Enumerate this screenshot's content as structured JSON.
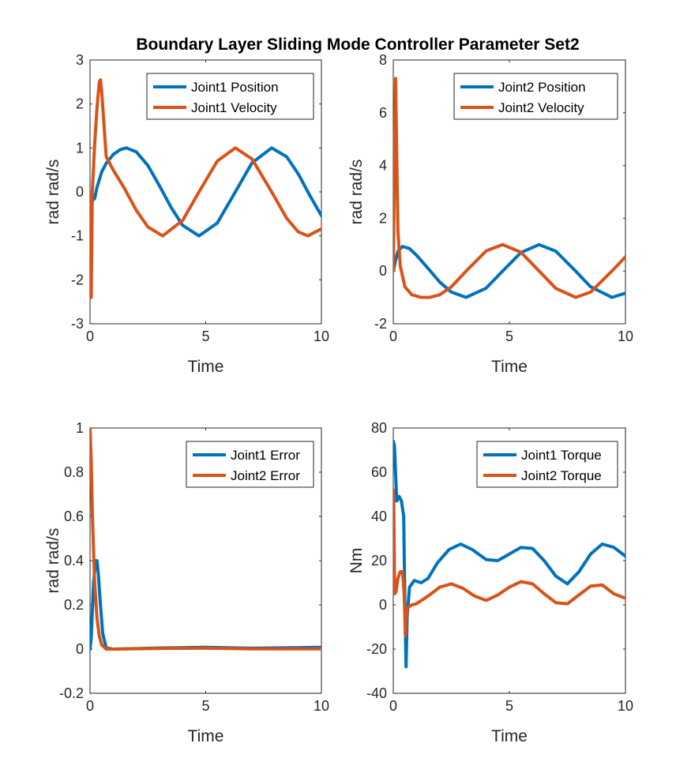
{
  "figure": {
    "title": "Boundary Layer Sliding Mode Controller Parameter Set2",
    "colors": {
      "blue": "#0072BD",
      "orange": "#D95319",
      "axis": "#262626"
    }
  },
  "chart_data": [
    {
      "type": "line",
      "xlabel": "Time",
      "ylabel": "rad rad/s",
      "xlim": [
        0,
        10
      ],
      "ylim": [
        -3,
        3
      ],
      "xticks": [
        0,
        5,
        10
      ],
      "yticks": [
        -3,
        -2,
        -1,
        0,
        1,
        2,
        3
      ],
      "legend_position": "top-right",
      "series": [
        {
          "name": "Joint1 Position",
          "color": "#0072BD",
          "x": [
            0,
            0.1,
            0.2,
            0.3,
            0.5,
            0.7,
            1.0,
            1.3,
            1.57,
            2.0,
            2.5,
            3.0,
            3.5,
            4.0,
            4.71,
            5.5,
            6.28,
            7.0,
            7.85,
            8.5,
            9.0,
            9.5,
            10.0
          ],
          "y": [
            0,
            -0.2,
            -0.15,
            0.1,
            0.45,
            0.65,
            0.85,
            0.96,
            1.0,
            0.91,
            0.6,
            0.14,
            -0.35,
            -0.76,
            -1.0,
            -0.71,
            0.0,
            0.66,
            1.0,
            0.8,
            0.41,
            -0.08,
            -0.54
          ]
        },
        {
          "name": "Joint1 Velocity",
          "color": "#D95319",
          "x": [
            0,
            0.05,
            0.1,
            0.2,
            0.3,
            0.4,
            0.45,
            0.5,
            0.7,
            1.0,
            1.5,
            2.0,
            2.5,
            3.14,
            4.0,
            4.71,
            5.5,
            6.28,
            7.0,
            7.85,
            8.5,
            9.0,
            9.42,
            10.0
          ],
          "y": [
            0,
            -2.4,
            0,
            1.1,
            1.9,
            2.5,
            2.55,
            2.3,
            0.8,
            0.5,
            0.07,
            -0.42,
            -0.8,
            -1.0,
            -0.65,
            0.0,
            0.7,
            1.0,
            0.75,
            0.0,
            -0.6,
            -0.91,
            -1.0,
            -0.84
          ]
        }
      ]
    },
    {
      "type": "line",
      "xlabel": "Time",
      "ylabel": "rad rad/s",
      "xlim": [
        0,
        10
      ],
      "ylim": [
        -2,
        8
      ],
      "xticks": [
        0,
        5,
        10
      ],
      "yticks": [
        -2,
        0,
        2,
        4,
        6,
        8
      ],
      "legend_position": "top-right",
      "series": [
        {
          "name": "Joint2 Position",
          "color": "#0072BD",
          "x": [
            0,
            0.1,
            0.2,
            0.4,
            0.7,
            1.0,
            1.5,
            2.0,
            2.5,
            3.14,
            4.0,
            4.71,
            5.5,
            6.28,
            7.0,
            7.85,
            8.5,
            9.42,
            10.0
          ],
          "y": [
            0,
            0.4,
            0.75,
            0.93,
            0.85,
            0.6,
            0.1,
            -0.42,
            -0.8,
            -1.0,
            -0.65,
            0.0,
            0.7,
            1.0,
            0.75,
            0.0,
            -0.6,
            -1.0,
            -0.84
          ]
        },
        {
          "name": "Joint2 Velocity",
          "color": "#D95319",
          "x": [
            0,
            0.05,
            0.1,
            0.2,
            0.3,
            0.5,
            0.8,
            1.2,
            1.57,
            2.0,
            2.5,
            3.14,
            4.0,
            4.71,
            5.5,
            6.28,
            7.0,
            7.85,
            8.5,
            9.42,
            10.0
          ],
          "y": [
            0,
            4.0,
            7.3,
            1.5,
            0.2,
            -0.6,
            -0.9,
            -1.0,
            -1.0,
            -0.9,
            -0.6,
            0.0,
            0.76,
            1.0,
            0.71,
            0.0,
            -0.66,
            -1.0,
            -0.8,
            0.0,
            0.54
          ]
        }
      ]
    },
    {
      "type": "line",
      "xlabel": "Time",
      "ylabel": "rad rad/s",
      "xlim": [
        0,
        10
      ],
      "ylim": [
        -0.2,
        1
      ],
      "xticks": [
        0,
        5,
        10
      ],
      "yticks": [
        -0.2,
        0,
        0.2,
        0.4,
        0.6,
        0.8,
        1
      ],
      "legend_position": "top-right",
      "series": [
        {
          "name": "Joint1 Error",
          "color": "#0072BD",
          "x": [
            0,
            0.05,
            0.15,
            0.25,
            0.3,
            0.35,
            0.45,
            0.55,
            0.7,
            1.0,
            3.0,
            5.0,
            7.0,
            10.0
          ],
          "y": [
            0,
            0.05,
            0.3,
            0.4,
            0.4,
            0.35,
            0.2,
            0.07,
            0.005,
            0.0,
            0.005,
            0.008,
            0.004,
            0.008
          ]
        },
        {
          "name": "Joint2 Error",
          "color": "#D95319",
          "x": [
            0,
            0.05,
            0.1,
            0.15,
            0.2,
            0.3,
            0.4,
            0.5,
            0.7,
            1.0,
            3.0,
            5.0,
            7.0,
            10.0
          ],
          "y": [
            1.0,
            0.85,
            0.62,
            0.45,
            0.3,
            0.14,
            0.06,
            0.02,
            0.0,
            0.0,
            0.003,
            0.004,
            0.001,
            0.001
          ]
        }
      ]
    },
    {
      "type": "line",
      "xlabel": "Time",
      "ylabel": "Nm",
      "xlim": [
        0,
        10
      ],
      "ylim": [
        -40,
        80
      ],
      "xticks": [
        0,
        5,
        10
      ],
      "yticks": [
        -40,
        -20,
        0,
        20,
        40,
        60,
        80
      ],
      "legend_position": "top-right",
      "series": [
        {
          "name": "Joint1 Torque",
          "color": "#0072BD",
          "x": [
            0,
            0.05,
            0.15,
            0.25,
            0.35,
            0.45,
            0.5,
            0.55,
            0.6,
            0.7,
            0.9,
            1.2,
            1.5,
            1.9,
            2.4,
            2.9,
            3.4,
            4.0,
            4.5,
            5.0,
            5.5,
            6.0,
            6.5,
            7.0,
            7.5,
            8.0,
            8.5,
            9.0,
            9.5,
            10.0
          ],
          "y": [
            74,
            72,
            47,
            49,
            47,
            40,
            0,
            -28,
            -5,
            8,
            11,
            10,
            12,
            19,
            25,
            27.5,
            25,
            20.5,
            20,
            23,
            26,
            25.5,
            20,
            13,
            9.5,
            15,
            23,
            27.5,
            26,
            22
          ]
        },
        {
          "name": "Joint2 Torque",
          "color": "#D95319",
          "x": [
            0,
            0.02,
            0.06,
            0.12,
            0.2,
            0.3,
            0.4,
            0.47,
            0.52,
            0.57,
            0.65,
            0.8,
            1.0,
            1.5,
            2.0,
            2.5,
            3.0,
            3.5,
            4.0,
            4.5,
            5.0,
            5.5,
            6.0,
            6.5,
            7.0,
            7.5,
            8.0,
            8.5,
            9.0,
            9.5,
            10.0
          ],
          "y": [
            52,
            46,
            5,
            6,
            12,
            15,
            15,
            5,
            -14,
            -4,
            -1,
            0,
            0.5,
            4,
            8,
            9.5,
            7.5,
            4,
            2,
            4.5,
            8,
            10.5,
            9.5,
            5,
            1,
            0.5,
            4.5,
            8.5,
            9,
            5,
            3
          ]
        }
      ]
    }
  ]
}
